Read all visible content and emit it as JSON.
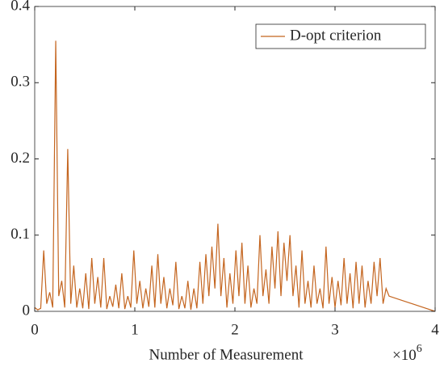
{
  "chart_data": {
    "type": "line",
    "xlabel": "Number of Measurement",
    "x_exponent": {
      "base": "×10",
      "exponent": "6"
    },
    "xlim": [
      0,
      4
    ],
    "xticks": [
      0,
      1,
      2,
      3,
      4
    ],
    "ylim": [
      0,
      0.4
    ],
    "yticks": [
      0,
      0.1,
      0.2,
      0.3,
      0.4
    ],
    "legend": "upper right",
    "x": [
      0,
      0.03,
      0.06,
      0.09,
      0.12,
      0.15,
      0.18,
      0.21,
      0.24,
      0.27,
      0.3,
      0.33,
      0.36,
      0.39,
      0.42,
      0.45,
      0.48,
      0.51,
      0.54,
      0.57,
      0.6,
      0.63,
      0.66,
      0.69,
      0.72,
      0.75,
      0.78,
      0.81,
      0.84,
      0.87,
      0.9,
      0.93,
      0.96,
      0.99,
      1.02,
      1.05,
      1.08,
      1.11,
      1.14,
      1.17,
      1.2,
      1.23,
      1.26,
      1.29,
      1.32,
      1.35,
      1.38,
      1.41,
      1.44,
      1.47,
      1.5,
      1.53,
      1.56,
      1.59,
      1.62,
      1.65,
      1.68,
      1.71,
      1.74,
      1.77,
      1.8,
      1.83,
      1.86,
      1.89,
      1.92,
      1.95,
      1.98,
      2.01,
      2.04,
      2.07,
      2.1,
      2.13,
      2.16,
      2.19,
      2.22,
      2.25,
      2.28,
      2.31,
      2.34,
      2.37,
      2.4,
      2.43,
      2.46,
      2.49,
      2.52,
      2.55,
      2.58,
      2.61,
      2.64,
      2.67,
      2.7,
      2.73,
      2.76,
      2.79,
      2.82,
      2.85,
      2.88,
      2.91,
      2.94,
      2.97,
      3,
      3.03,
      3.06,
      3.09,
      3.12,
      3.15,
      3.18,
      3.21,
      3.24,
      3.27,
      3.3,
      3.33,
      3.36,
      3.39,
      3.42,
      3.45,
      3.48,
      3.51,
      3.54,
      4
    ],
    "series": [
      {
        "name": "D-opt criterion",
        "color": "#c4651f",
        "values": [
          0.005,
          0.002,
          0.004,
          0.08,
          0.01,
          0.025,
          0.005,
          0.355,
          0.02,
          0.04,
          0.005,
          0.213,
          0.01,
          0.06,
          0.005,
          0.03,
          0.004,
          0.05,
          0.003,
          0.07,
          0.01,
          0.045,
          0.005,
          0.07,
          0.003,
          0.02,
          0.006,
          0.035,
          0.004,
          0.05,
          0.003,
          0.02,
          0.005,
          0.08,
          0.01,
          0.04,
          0.004,
          0.03,
          0.006,
          0.06,
          0.005,
          0.075,
          0.01,
          0.045,
          0.004,
          0.03,
          0.008,
          0.065,
          0.003,
          0.02,
          0.004,
          0.04,
          0.002,
          0.03,
          0.004,
          0.065,
          0.01,
          0.075,
          0.02,
          0.085,
          0.03,
          0.115,
          0.02,
          0.07,
          0.005,
          0.05,
          0.01,
          0.08,
          0.02,
          0.09,
          0.01,
          0.06,
          0.005,
          0.03,
          0.01,
          0.1,
          0.02,
          0.055,
          0.01,
          0.085,
          0.03,
          0.105,
          0.02,
          0.09,
          0.04,
          0.1,
          0.02,
          0.06,
          0.005,
          0.08,
          0.01,
          0.04,
          0.005,
          0.06,
          0.01,
          0.03,
          0.004,
          0.085,
          0.01,
          0.045,
          0.005,
          0.04,
          0.008,
          0.07,
          0.01,
          0.05,
          0.004,
          0.065,
          0.01,
          0.06,
          0.005,
          0.04,
          0.01,
          0.065,
          0.02,
          0.07,
          0.01,
          0.03,
          0.02,
          0
        ]
      }
    ]
  }
}
